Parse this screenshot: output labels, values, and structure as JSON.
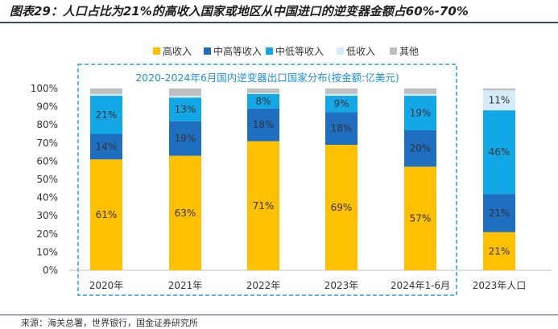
{
  "title": "图表29：人口占比为21%的高收入国家或地区从中国进口的逆变器金额占60%-70%",
  "source": "来源：海关总署，世界银行，国金证券研究所",
  "chart_data": {
    "type": "bar",
    "stacked": true,
    "annotation": "2020-2024年6月国内逆变器出口国家分布(按金额:亿美元)",
    "categories": [
      "2020年",
      "2021年",
      "2022年",
      "2023年",
      "2024年1-6月",
      "2023年人口"
    ],
    "ylim": [
      0,
      100
    ],
    "yticks": [
      "0%",
      "10%",
      "20%",
      "30%",
      "40%",
      "50%",
      "60%",
      "70%",
      "80%",
      "90%",
      "100%"
    ],
    "series": [
      {
        "name": "高收入",
        "color": "#ffc000",
        "values": [
          61,
          63,
          71,
          69,
          57,
          21
        ],
        "labels": [
          "61%",
          "63%",
          "71%",
          "69%",
          "57%",
          "21%"
        ]
      },
      {
        "name": "中高等收入",
        "color": "#1f6fc0",
        "values": [
          14,
          19,
          18,
          18,
          20,
          21
        ],
        "labels": [
          "14%",
          "19%",
          "18%",
          "18%",
          "20%",
          "21%"
        ]
      },
      {
        "name": "中低等收入",
        "color": "#12a7e6",
        "values": [
          21,
          13,
          8,
          9,
          19,
          46
        ],
        "labels": [
          "21%",
          "13%",
          "8%",
          "9%",
          "19%",
          "46%"
        ]
      },
      {
        "name": "低收入",
        "color": "#d4ecfa",
        "values": [
          1,
          1,
          0.5,
          1,
          1,
          11
        ],
        "labels": [
          "",
          "",
          "",
          "",
          "",
          "11%"
        ]
      },
      {
        "name": "其他",
        "color": "#bfbfbf",
        "values": [
          3,
          4,
          2.5,
          3,
          3,
          1
        ],
        "labels": [
          "",
          "",
          "",
          "",
          "",
          ""
        ]
      }
    ]
  }
}
